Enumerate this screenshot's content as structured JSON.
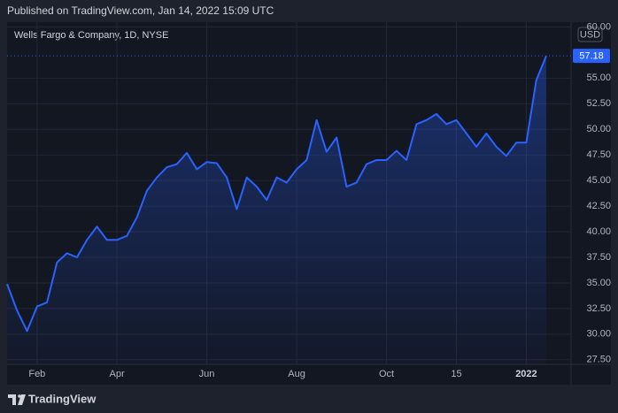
{
  "header": "Published on TradingView.com, Jan 14, 2022 15:09 UTC",
  "footer": "TradingView",
  "chart_data": {
    "type": "area",
    "subtitle": "Wells Fargo & Company, 1D, NYSE",
    "currency": "USD",
    "color": "#2962ff",
    "grid": true,
    "categories": [
      null,
      null,
      null,
      "Feb",
      null,
      null,
      null,
      null,
      null,
      null,
      null,
      "Apr",
      null,
      null,
      null,
      null,
      null,
      null,
      null,
      null,
      "Jun",
      null,
      null,
      null,
      null,
      null,
      null,
      null,
      null,
      "Aug",
      null,
      null,
      null,
      null,
      null,
      null,
      null,
      null,
      "Oct",
      null,
      null,
      null,
      null,
      null,
      null,
      "15",
      null,
      null,
      null,
      null,
      null,
      null,
      "2022",
      null,
      null
    ],
    "values": [
      34.9,
      32.3,
      30.3,
      32.7,
      33.1,
      37.0,
      37.9,
      37.5,
      39.2,
      40.5,
      39.2,
      39.2,
      39.6,
      41.4,
      44.0,
      45.3,
      46.3,
      46.6,
      47.7,
      46.1,
      46.8,
      46.7,
      45.3,
      42.2,
      45.3,
      44.4,
      43.1,
      45.3,
      44.8,
      46.1,
      47.0,
      50.9,
      47.8,
      49.2,
      44.4,
      44.8,
      46.6,
      47.0,
      47.0,
      47.9,
      47.0,
      50.5,
      50.9,
      51.5,
      50.5,
      50.9,
      49.6,
      48.3,
      49.6,
      48.3,
      47.4,
      48.7,
      48.7,
      54.8,
      57.18
    ],
    "last_price_label": "57.18",
    "ylim": [
      27.05,
      60.47
    ],
    "yticks": [
      {
        "value": 27.5,
        "label": "27.50"
      },
      {
        "value": 30,
        "label": "30.00"
      },
      {
        "value": 32.5,
        "label": "32.50"
      },
      {
        "value": 35,
        "label": "35.00"
      },
      {
        "value": 37.5,
        "label": "37.50"
      },
      {
        "value": 40,
        "label": "40.00"
      },
      {
        "value": 42.5,
        "label": "42.50"
      },
      {
        "value": 45,
        "label": "45.00"
      },
      {
        "value": 47.5,
        "label": "47.50"
      },
      {
        "value": 50,
        "label": "50.00"
      },
      {
        "value": 52.5,
        "label": "52.50"
      },
      {
        "value": 55,
        "label": "55.00"
      },
      {
        "value": 60,
        "label": "60.00"
      }
    ]
  }
}
